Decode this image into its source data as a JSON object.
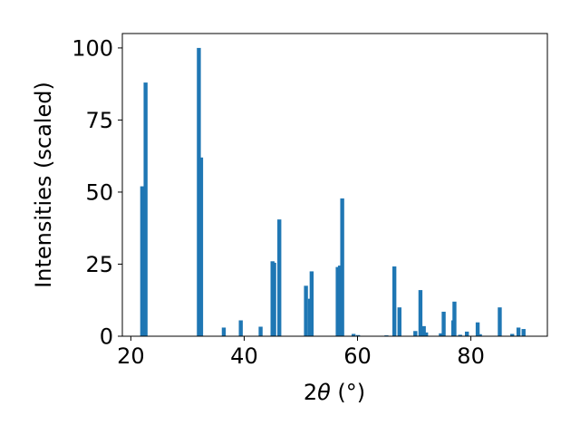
{
  "chart_data": {
    "type": "bar",
    "xlabel_prefix": "2",
    "xlabel_symbol": "θ",
    "xlabel_unit": " (°)",
    "ylabel": "Intensities (scaled)",
    "xlim": [
      18.5,
      93.5
    ],
    "ylim": [
      0,
      105
    ],
    "xticks": [
      20,
      40,
      60,
      80
    ],
    "yticks": [
      0,
      25,
      50,
      75,
      100
    ],
    "grid": false,
    "bar_color": "#1f77b4",
    "bar_width": 0.7,
    "x": [
      22.0,
      22.6,
      32.0,
      32.4,
      36.4,
      39.4,
      42.9,
      45.0,
      45.3,
      46.2,
      50.9,
      51.6,
      51.9,
      56.5,
      56.9,
      57.3,
      59.3,
      60.1,
      65.1,
      66.5,
      67.4,
      70.2,
      71.1,
      71.7,
      72.1,
      74.7,
      75.2,
      76.9,
      77.1,
      78.1,
      79.3,
      81.2,
      81.6,
      85.1,
      87.3,
      88.4,
      89.3
    ],
    "y": [
      52,
      88,
      100,
      62,
      3,
      5.5,
      3.3,
      26,
      25.5,
      40.5,
      17.5,
      13,
      22.5,
      24,
      24.5,
      47.8,
      0.8,
      0.4,
      0.3,
      24.2,
      10,
      1.8,
      16,
      3.5,
      1.3,
      1,
      8.5,
      5.5,
      12,
      0.5,
      1.6,
      4.8,
      0.7,
      10,
      0.8,
      3,
      2.5
    ]
  }
}
